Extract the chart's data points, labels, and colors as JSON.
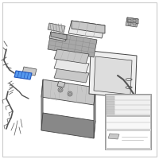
{
  "bg_color": "#ffffff",
  "part_light": "#e8e8e8",
  "part_mid": "#c8c8c8",
  "part_dark": "#a8a8a8",
  "part_darker": "#888888",
  "outline": "#444444",
  "highlight_blue": "#5599ee",
  "highlight_blue_dark": "#2255bb",
  "wire_color": "#555555",
  "grid_color": "#aaaaaa",
  "legend_bg": "#f8f8f8"
}
